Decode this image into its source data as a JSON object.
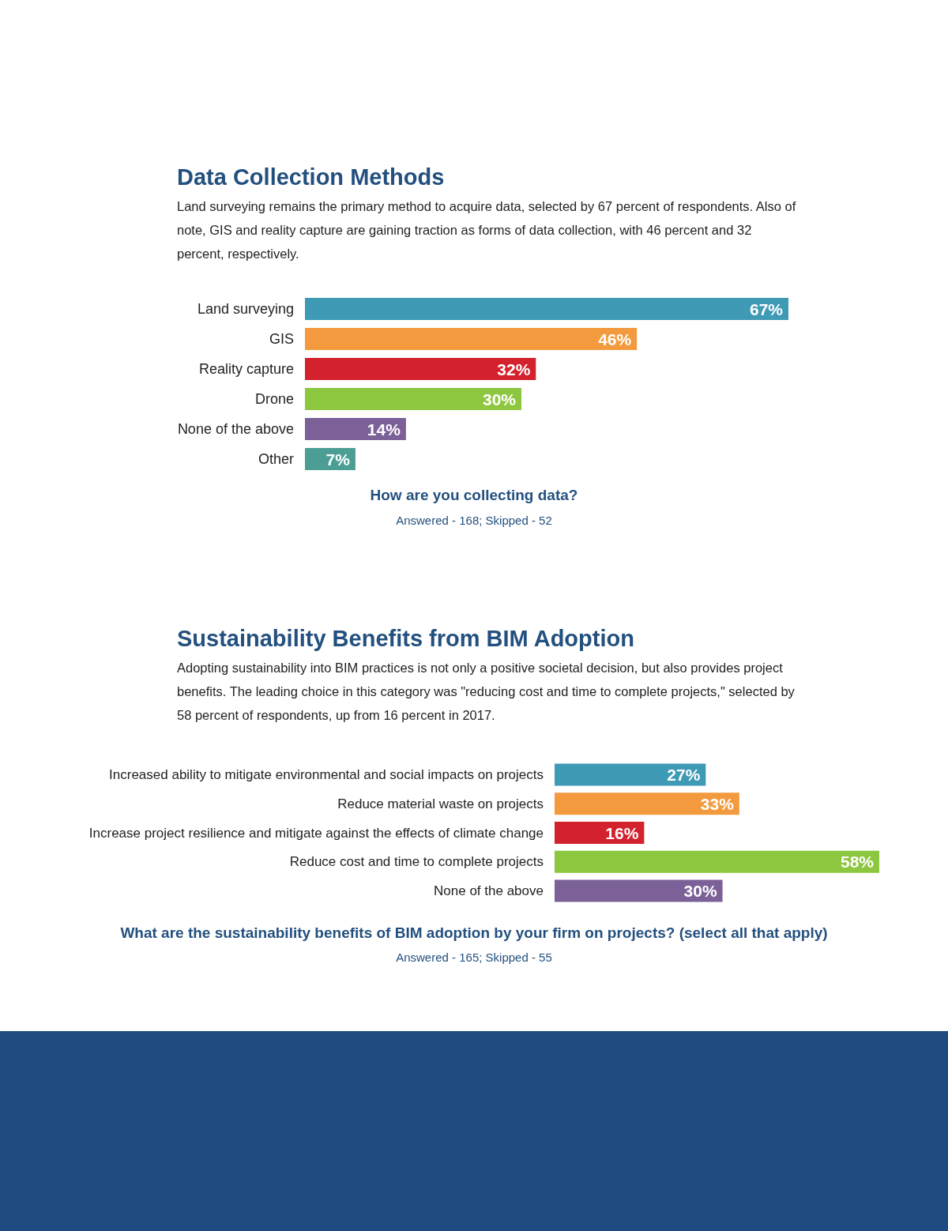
{
  "chart_data": [
    {
      "type": "bar",
      "orientation": "horizontal",
      "title": "Data Collection Methods",
      "subtitle": "Land surveying remains the primary method to acquire data, selected by 67 percent of respondents. Also of note, GIS and reality capture are gaining traction as forms of data collection, with 46 percent and 32 percent, respectively.",
      "categories": [
        "Land surveying",
        "GIS",
        "Reality capture",
        "Drone",
        "None of the above",
        "Other"
      ],
      "values": [
        67,
        46,
        32,
        30,
        14,
        7
      ],
      "colors": [
        "#3f9ab5",
        "#f39a3e",
        "#d3212d",
        "#8dc63f",
        "#7b6197",
        "#4c9e94"
      ],
      "value_labels": [
        "67%",
        "46%",
        "32%",
        "30%",
        "14%",
        "7%"
      ],
      "annotations": [
        "How are you collecting data?",
        "Answered - 168;  Skipped - 52"
      ]
    },
    {
      "type": "bar",
      "orientation": "horizontal",
      "title": "Sustainability Benefits from BIM Adoption",
      "subtitle": "Adopting sustainability into BIM practices is not only a positive societal decision, but also provides project benefits. The leading choice in this category was \"reducing cost and time to complete projects,\" selected by 58 percent of respondents, up from 16 percent in 2017.",
      "categories": [
        "Increased ability to mitigate environmental and social impacts on projects",
        "Reduce material waste on projects",
        "Increase project resilience and mitigate against the effects of climate change",
        "Reduce cost and time to complete projects",
        "None of the above"
      ],
      "values": [
        27,
        33,
        16,
        58,
        30
      ],
      "colors": [
        "#3f9ab5",
        "#f39a3e",
        "#d3212d",
        "#8dc63f",
        "#7b6197"
      ],
      "value_labels": [
        "27%",
        "33%",
        "16%",
        "58%",
        "30%"
      ],
      "annotations": [
        "What are the sustainability benefits of BIM adoption by your firm on projects? (select all that apply)",
        "Answered - 165;  Skipped - 55"
      ]
    }
  ]
}
